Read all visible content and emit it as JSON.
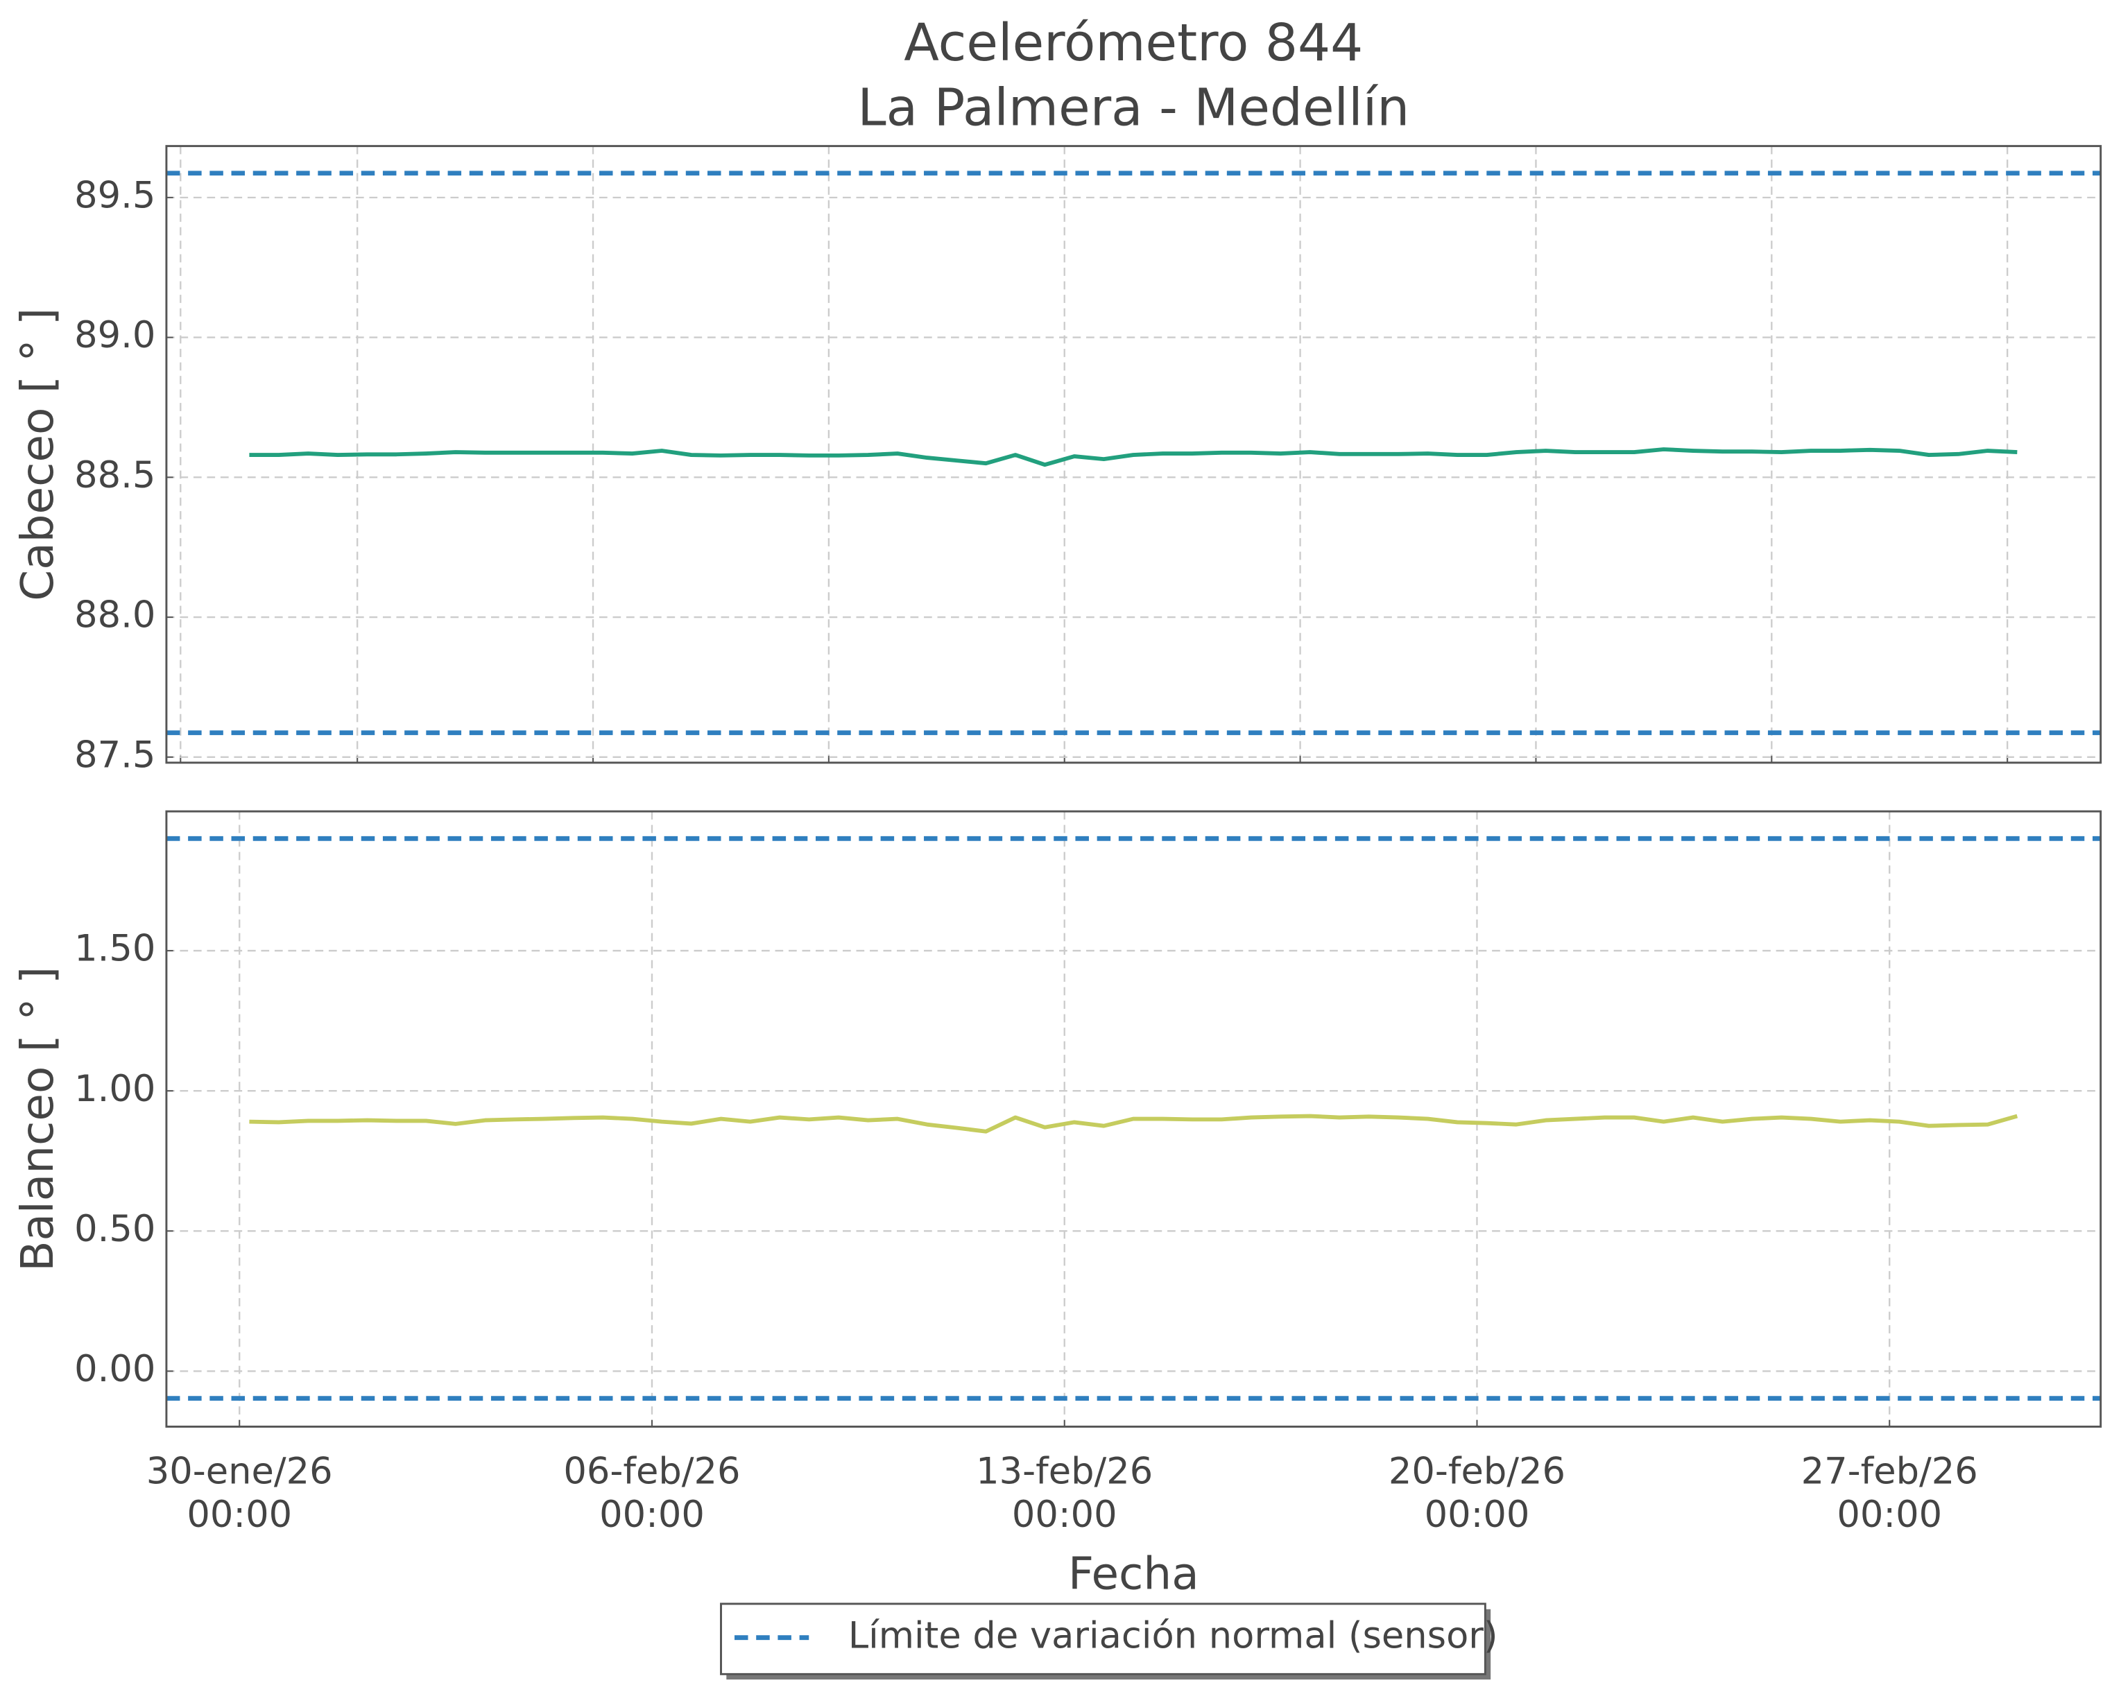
{
  "chart_data": [
    {
      "type": "line",
      "title": "Acelerómetro 844",
      "subtitle": "La Palmera - Medellín",
      "ylabel": "Cabeceo [ ° ]",
      "xlim": [
        "2026-01-28T18:15",
        "2026-03-02T14:00"
      ],
      "xticks": [
        "2026-01-29T00:00",
        "2026-02-01T00:00",
        "2026-02-05T00:00",
        "2026-02-09T00:00",
        "2026-02-13T00:00",
        "2026-02-17T00:00",
        "2026-02-21T00:00",
        "2026-02-25T00:00",
        "2026-03-01T00:00"
      ],
      "ylim": [
        87.48,
        89.684
      ],
      "yticks": [
        89.5,
        {
          "value": 89.0,
          "label": "89.0"
        },
        88.5,
        {
          "value": 88.0,
          "label": "88.0"
        },
        87.5
      ],
      "grid": true,
      "x": [
        "2026-01-30T04:00",
        "2026-01-30T16:00",
        "2026-01-31T04:00",
        "2026-01-31T16:00",
        "2026-02-01T04:00",
        "2026-02-01T16:00",
        "2026-02-02T04:00",
        "2026-02-02T16:00",
        "2026-02-03T04:00",
        "2026-02-03T16:00",
        "2026-02-04T04:00",
        "2026-02-04T16:00",
        "2026-02-05T04:00",
        "2026-02-05T16:00",
        "2026-02-06T04:00",
        "2026-02-06T16:00",
        "2026-02-07T04:00",
        "2026-02-07T16:00",
        "2026-02-08T04:00",
        "2026-02-08T16:00",
        "2026-02-09T04:00",
        "2026-02-09T16:00",
        "2026-02-10T04:00",
        "2026-02-10T16:00",
        "2026-02-11T04:00",
        "2026-02-11T16:00",
        "2026-02-12T04:00",
        "2026-02-12T16:00",
        "2026-02-13T04:00",
        "2026-02-13T16:00",
        "2026-02-14T04:00",
        "2026-02-14T16:00",
        "2026-02-15T04:00",
        "2026-02-15T16:00",
        "2026-02-16T04:00",
        "2026-02-16T16:00",
        "2026-02-17T04:00",
        "2026-02-17T16:00",
        "2026-02-18T04:00",
        "2026-02-18T16:00",
        "2026-02-19T04:00",
        "2026-02-19T16:00",
        "2026-02-20T04:00",
        "2026-02-20T16:00",
        "2026-02-21T04:00",
        "2026-02-21T16:00",
        "2026-02-22T04:00",
        "2026-02-22T16:00",
        "2026-02-23T04:00",
        "2026-02-23T16:00",
        "2026-02-24T04:00",
        "2026-02-24T16:00",
        "2026-02-25T04:00",
        "2026-02-25T16:00",
        "2026-02-26T04:00",
        "2026-02-26T16:00",
        "2026-02-27T04:00",
        "2026-02-27T16:00",
        "2026-02-28T04:00",
        "2026-02-28T16:00",
        "2026-03-01T04:00"
      ],
      "series": [
        {
          "color": "#22a07e",
          "values": [
            88.58,
            88.58,
            88.585,
            88.58,
            88.582,
            88.582,
            88.585,
            88.59,
            88.588,
            88.588,
            88.588,
            88.588,
            88.588,
            88.585,
            88.595,
            88.58,
            88.578,
            88.58,
            88.58,
            88.578,
            88.578,
            88.58,
            88.585,
            88.57,
            88.56,
            88.55,
            88.58,
            88.545,
            88.575,
            88.565,
            88.58,
            88.585,
            88.585,
            88.588,
            88.588,
            88.585,
            88.59,
            88.583,
            88.583,
            88.583,
            88.585,
            88.58,
            88.58,
            88.59,
            88.595,
            88.59,
            88.59,
            88.59,
            88.6,
            88.595,
            88.592,
            88.592,
            88.59,
            88.595,
            88.595,
            88.598,
            88.595,
            88.58,
            88.583,
            88.595,
            88.59
          ]
        }
      ],
      "limits": {
        "name": "Límite de variación normal (sensor)",
        "color": "#2f7fbf",
        "values": [
          87.587,
          89.587
        ]
      }
    },
    {
      "type": "line",
      "ylabel": "Balanceo [ ° ]",
      "xlabel": "Fecha",
      "xlim": [
        "2026-01-28T18:15",
        "2026-03-02T14:00"
      ],
      "xticks": [
        {
          "value": "2026-01-30T00:00",
          "label": "30-ene/26\n00:00"
        },
        {
          "value": "2026-02-06T00:00",
          "label": "06-feb/26\n00:00"
        },
        {
          "value": "2026-02-13T00:00",
          "label": "13-feb/26\n00:00"
        },
        {
          "value": "2026-02-20T00:00",
          "label": "20-feb/26\n00:00"
        },
        {
          "value": "2026-02-27T00:00",
          "label": "27-feb/26\n00:00"
        }
      ],
      "ylim": [
        -0.198,
        1.997
      ],
      "yticks": [
        {
          "value": 1.5,
          "label": "1.50"
        },
        {
          "value": 1.0,
          "label": "1.00"
        },
        {
          "value": 0.5,
          "label": "0.50"
        },
        {
          "value": 0,
          "label": "0.00"
        }
      ],
      "grid": true,
      "x": [
        "2026-01-30T04:00",
        "2026-01-30T16:00",
        "2026-01-31T04:00",
        "2026-01-31T16:00",
        "2026-02-01T04:00",
        "2026-02-01T16:00",
        "2026-02-02T04:00",
        "2026-02-02T16:00",
        "2026-02-03T04:00",
        "2026-02-03T16:00",
        "2026-02-04T04:00",
        "2026-02-04T16:00",
        "2026-02-05T04:00",
        "2026-02-05T16:00",
        "2026-02-06T04:00",
        "2026-02-06T16:00",
        "2026-02-07T04:00",
        "2026-02-07T16:00",
        "2026-02-08T04:00",
        "2026-02-08T16:00",
        "2026-02-09T04:00",
        "2026-02-09T16:00",
        "2026-02-10T04:00",
        "2026-02-10T16:00",
        "2026-02-11T04:00",
        "2026-02-11T16:00",
        "2026-02-12T04:00",
        "2026-02-12T16:00",
        "2026-02-13T04:00",
        "2026-02-13T16:00",
        "2026-02-14T04:00",
        "2026-02-14T16:00",
        "2026-02-15T04:00",
        "2026-02-15T16:00",
        "2026-02-16T04:00",
        "2026-02-16T16:00",
        "2026-02-17T04:00",
        "2026-02-17T16:00",
        "2026-02-18T04:00",
        "2026-02-18T16:00",
        "2026-02-19T04:00",
        "2026-02-19T16:00",
        "2026-02-20T04:00",
        "2026-02-20T16:00",
        "2026-02-21T04:00",
        "2026-02-21T16:00",
        "2026-02-22T04:00",
        "2026-02-22T16:00",
        "2026-02-23T04:00",
        "2026-02-23T16:00",
        "2026-02-24T04:00",
        "2026-02-24T16:00",
        "2026-02-25T04:00",
        "2026-02-25T16:00",
        "2026-02-26T04:00",
        "2026-02-26T16:00",
        "2026-02-27T04:00",
        "2026-02-27T16:00",
        "2026-02-28T04:00",
        "2026-02-28T16:00",
        "2026-03-01T04:00"
      ],
      "series": [
        {
          "color": "#c5cc5e",
          "values": [
            0.89,
            0.888,
            0.893,
            0.893,
            0.895,
            0.893,
            0.893,
            0.882,
            0.895,
            0.898,
            0.9,
            0.903,
            0.905,
            0.9,
            0.89,
            0.883,
            0.9,
            0.89,
            0.905,
            0.898,
            0.905,
            0.895,
            0.9,
            0.88,
            0.868,
            0.855,
            0.905,
            0.87,
            0.888,
            0.875,
            0.9,
            0.9,
            0.898,
            0.898,
            0.905,
            0.908,
            0.91,
            0.905,
            0.908,
            0.905,
            0.9,
            0.888,
            0.885,
            0.88,
            0.895,
            0.9,
            0.905,
            0.905,
            0.89,
            0.905,
            0.89,
            0.9,
            0.905,
            0.9,
            0.89,
            0.895,
            0.89,
            0.875,
            0.878,
            0.88,
            0.91
          ]
        }
      ],
      "limits": {
        "color": "#2f7fbf",
        "values": [
          -0.097,
          1.9
        ]
      }
    }
  ]
}
